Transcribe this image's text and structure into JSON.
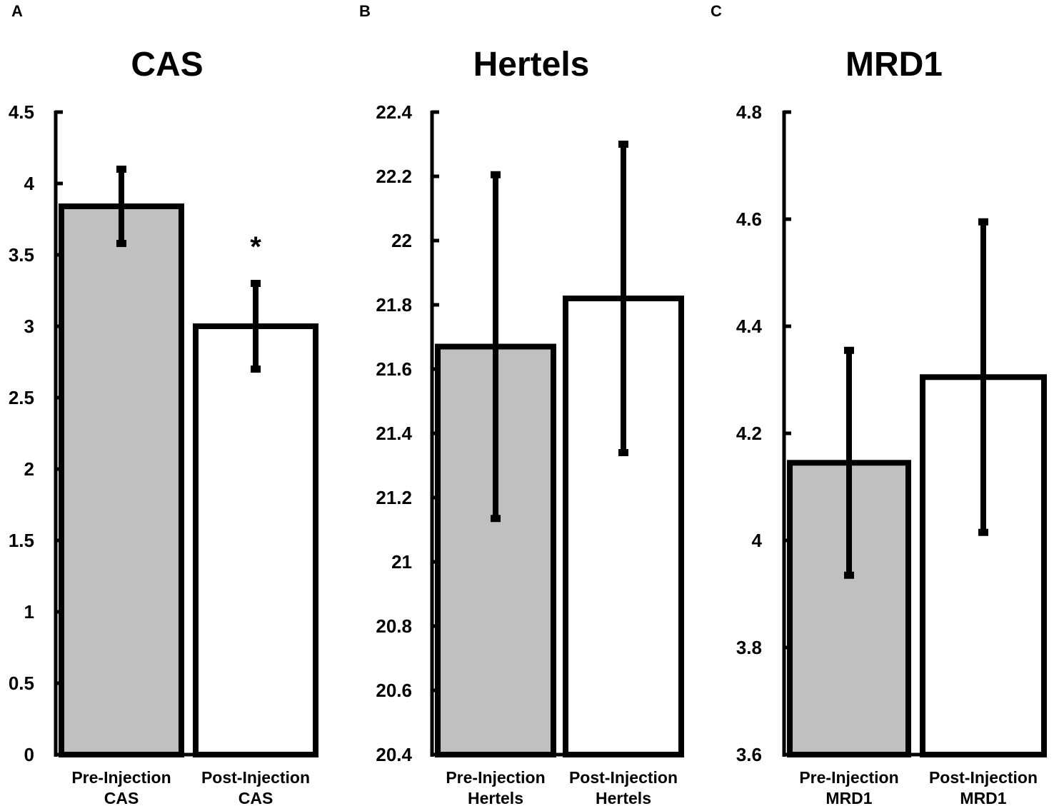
{
  "chart_data": [
    {
      "type": "bar",
      "panel": "A",
      "title": "CAS",
      "xlabel": "",
      "ylabel": "",
      "ylim": [
        0,
        4.5
      ],
      "ticks": [
        "0",
        "0.5",
        "1",
        "1.5",
        "2",
        "2.5",
        "3",
        "3.5",
        "4",
        "4.5"
      ],
      "tick_values": [
        0,
        0.5,
        1,
        1.5,
        2,
        2.5,
        3,
        3.5,
        4,
        4.5
      ],
      "categories": [
        [
          "Pre-Injection",
          "CAS"
        ],
        [
          "Post-Injection",
          "CAS"
        ]
      ],
      "values": [
        3.84,
        3.0
      ],
      "errors": [
        0.26,
        0.3
      ],
      "fills": [
        "#c0c0c0",
        "#ffffff"
      ],
      "significance": [
        "",
        "*"
      ]
    },
    {
      "type": "bar",
      "panel": "B",
      "title": "Hertels",
      "xlabel": "",
      "ylabel": "",
      "ylim": [
        20.4,
        22.4
      ],
      "ticks": [
        "20.4",
        "20.6",
        "20.8",
        "21",
        "21.2",
        "21.4",
        "21.6",
        "21.8",
        "22",
        "22.2",
        "22.4"
      ],
      "tick_values": [
        20.4,
        20.6,
        20.8,
        21.0,
        21.2,
        21.4,
        21.6,
        21.8,
        22.0,
        22.2,
        22.4
      ],
      "categories": [
        [
          "Pre-Injection",
          "Hertels"
        ],
        [
          "Post-Injection",
          "Hertels"
        ]
      ],
      "values": [
        21.67,
        21.82
      ],
      "errors": [
        0.535,
        0.48
      ],
      "fills": [
        "#c0c0c0",
        "#ffffff"
      ],
      "significance": [
        "",
        ""
      ]
    },
    {
      "type": "bar",
      "panel": "C",
      "title": "MRD1",
      "xlabel": "",
      "ylabel": "",
      "ylim": [
        3.6,
        4.8
      ],
      "ticks": [
        "3.6",
        "3.8",
        "4",
        "4.2",
        "4.4",
        "4.6",
        "4.8"
      ],
      "tick_values": [
        3.6,
        3.8,
        4.0,
        4.2,
        4.4,
        4.6,
        4.8
      ],
      "categories": [
        [
          "Pre-Injection",
          "MRD1"
        ],
        [
          "Post-Injection",
          "MRD1"
        ]
      ],
      "values": [
        4.145,
        4.305
      ],
      "errors": [
        0.21,
        0.29
      ],
      "fills": [
        "#c0c0c0",
        "#ffffff"
      ],
      "significance": [
        "",
        ""
      ]
    }
  ]
}
